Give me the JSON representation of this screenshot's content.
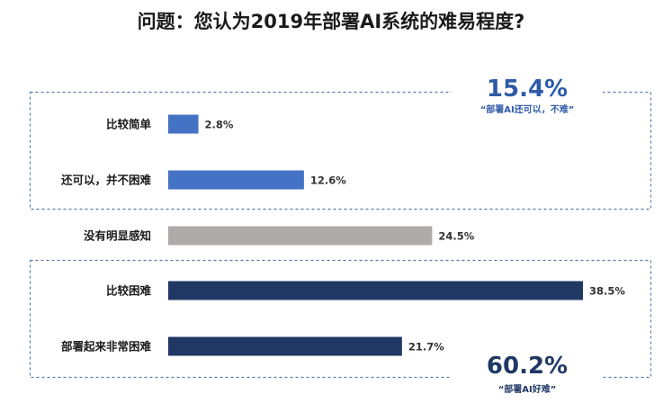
{
  "colors": {
    "easy_blue": "#4472c4",
    "neutral_gray": "#afabab",
    "hard_navy": "#203864",
    "frame_dash": "#5b7aa8",
    "callout_top": "#2e5aa8",
    "callout_bottom": "#1f3864"
  },
  "chart_data": {
    "type": "bar",
    "orientation": "horizontal",
    "title": "问题：您认为2019年部署AI系统的难易程度?",
    "categories": [
      "比较简单",
      "还可以，并不困难",
      "没有明显感知",
      "比较困难",
      "部署起来非常困难"
    ],
    "values": [
      2.8,
      12.6,
      24.5,
      38.5,
      21.7
    ],
    "value_labels": [
      "2.8%",
      "12.6%",
      "24.5%",
      "38.5%",
      "21.7%"
    ],
    "bar_colors": [
      "#4472c4",
      "#4472c4",
      "#afabab",
      "#203864",
      "#203864"
    ],
    "xlim": [
      0,
      38.5
    ],
    "grid": false,
    "legend": "none",
    "callouts": [
      {
        "value": "15.4%",
        "caption": "“部署AI还可以，不难”",
        "color": "#2e5aa8"
      },
      {
        "value": "60.2%",
        "caption": "“部署AI好难”",
        "color": "#1f3864"
      }
    ]
  }
}
